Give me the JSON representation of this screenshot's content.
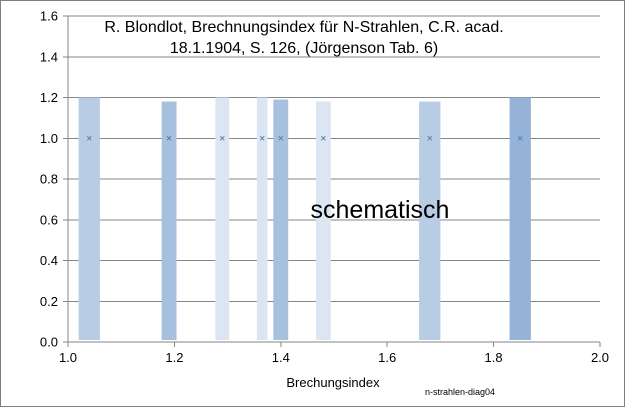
{
  "chart_data": {
    "type": "bar",
    "title_line1": "R. Blondlot, Brechnungsindex für N-Strahlen, C.R. acad.",
    "title_line2": "18.1.1904, S. 126, (Jörgenson Tab. 6)",
    "xlabel": "Brechungsindex",
    "ylabel": "",
    "source_note": "n-strahlen-diag04",
    "annotation": "schematisch",
    "xlim": [
      1.0,
      2.0
    ],
    "ylim": [
      0.0,
      1.6
    ],
    "x_ticks": [
      "1.0",
      "1.2",
      "1.4",
      "1.6",
      "1.8",
      "2.0"
    ],
    "y_ticks": [
      "0.0",
      "0.2",
      "0.4",
      "0.6",
      "0.8",
      "1.0",
      "1.2",
      "1.4",
      "1.6"
    ],
    "grid": "horizontal",
    "bands": [
      {
        "x": 1.04,
        "y": 1.0,
        "top": 1.2,
        "width": 0.04,
        "color": "#b8cce4"
      },
      {
        "x": 1.19,
        "y": 1.0,
        "top": 1.18,
        "width": 0.028,
        "color": "#a7c0de"
      },
      {
        "x": 1.29,
        "y": 1.0,
        "top": 1.2,
        "width": 0.026,
        "color": "#dce6f2"
      },
      {
        "x": 1.365,
        "y": 1.0,
        "top": 1.2,
        "width": 0.02,
        "color": "#dce6f2"
      },
      {
        "x": 1.4,
        "y": 1.0,
        "top": 1.19,
        "width": 0.028,
        "color": "#a7c0de"
      },
      {
        "x": 1.48,
        "y": 1.0,
        "top": 1.18,
        "width": 0.028,
        "color": "#dce6f2"
      },
      {
        "x": 1.68,
        "y": 1.0,
        "top": 1.18,
        "width": 0.04,
        "color": "#b8cce4"
      },
      {
        "x": 1.85,
        "y": 1.0,
        "top": 1.2,
        "width": 0.04,
        "color": "#95b3d7"
      }
    ],
    "marker_color": "#4f81bd",
    "gridline_color": "#868686"
  }
}
